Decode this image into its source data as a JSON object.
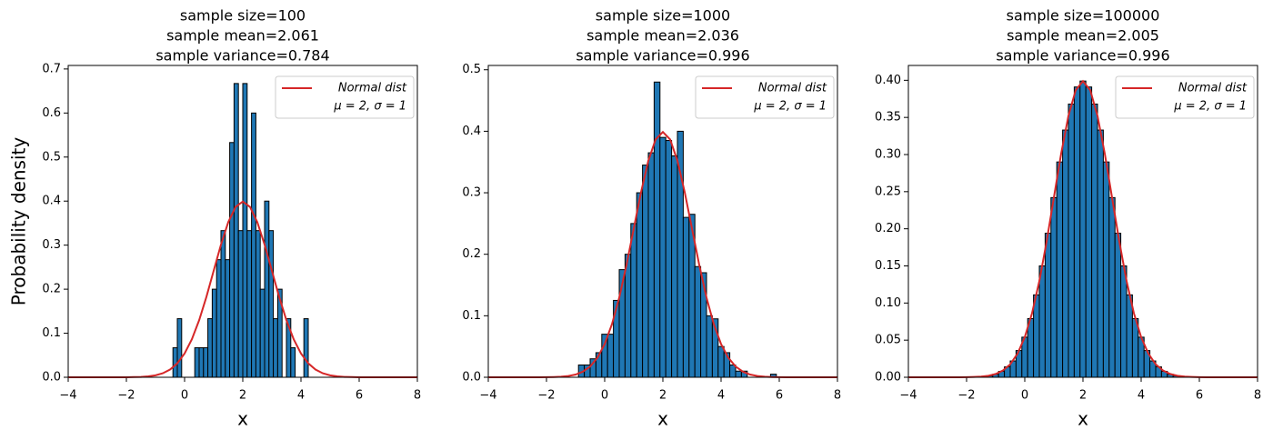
{
  "chart_data": [
    {
      "type": "histogram",
      "title": [
        "sample size=100",
        "sample mean=2.061",
        "sample variance=0.784"
      ],
      "xlabel": "x",
      "ylabel": "Probability density",
      "color": "#1f77b4",
      "legend": "upper right",
      "bins": [
        -0.4,
        -0.25,
        -0.1,
        0.05,
        0.2,
        0.35,
        0.5,
        0.65,
        0.8,
        0.95,
        1.1,
        1.25,
        1.4,
        1.55,
        1.7,
        1.85,
        2,
        2.15,
        2.3,
        2.45,
        2.6,
        2.75,
        2.9,
        3.05,
        3.2,
        3.35,
        3.5,
        3.65,
        3.8,
        3.95,
        4.1,
        4.25
      ],
      "values": [
        0.067,
        0.133,
        0,
        0,
        0,
        0.067,
        0.067,
        0.067,
        0.133,
        0.2,
        0.267,
        0.333,
        0.267,
        0.533,
        0.667,
        0.333,
        0.667,
        0.333,
        0.6,
        0.333,
        0.2,
        0.4,
        0.333,
        0.133,
        0.2,
        0,
        0.133,
        0.067,
        0,
        0,
        0.133
      ],
      "series": [
        {
          "name": "Normal dist",
          "params": "μ = 2, σ = 1",
          "color": "#d62728",
          "x": [
            -4,
            -3.75,
            -3.5,
            -3.25,
            -3,
            -2.75,
            -2.5,
            -2.25,
            -2,
            -1.75,
            -1.5,
            -1.25,
            -1,
            -0.75,
            -0.5,
            -0.25,
            0,
            0.25,
            0.5,
            0.75,
            1,
            1.25,
            1.5,
            1.75,
            2,
            2.25,
            2.5,
            2.75,
            3,
            3.25,
            3.5,
            3.75,
            4,
            4.25,
            4.5,
            4.75,
            5,
            5.25,
            5.5,
            5.75,
            6,
            6.25,
            6.5,
            6.75,
            7,
            7.25,
            7.5,
            7.75,
            8
          ],
          "values": [
            0,
            0,
            0,
            0,
            0,
            0,
            0,
            0,
            0.0001,
            0.0004,
            0.0009,
            0.002,
            0.0044,
            0.0091,
            0.0175,
            0.0317,
            0.054,
            0.0863,
            0.1295,
            0.1826,
            0.242,
            0.3011,
            0.3521,
            0.3867,
            0.3989,
            0.3867,
            0.3521,
            0.3011,
            0.242,
            0.1826,
            0.1295,
            0.0863,
            0.054,
            0.0317,
            0.0175,
            0.0091,
            0.0044,
            0.002,
            0.0009,
            0.0004,
            0.0001,
            0,
            0,
            0,
            0,
            0,
            0,
            0,
            0
          ]
        }
      ],
      "xlim": [
        -4,
        8
      ],
      "xticks": [
        {
          "value": -4,
          "label": "−4"
        },
        {
          "value": -2,
          "label": "−2"
        },
        0,
        2,
        4,
        6,
        8
      ],
      "ylim": [
        0,
        0.708
      ],
      "yticks": [
        {
          "value": 0,
          "label": "0.0"
        },
        0.1,
        0.2,
        0.3,
        0.4,
        0.5,
        0.6,
        0.7
      ]
    },
    {
      "type": "histogram",
      "title": [
        "sample size=1000",
        "sample mean=2.036",
        "sample variance=0.996"
      ],
      "xlabel": "x",
      "color": "#1f77b4",
      "legend": "upper right",
      "bins": [
        -0.9,
        -0.7,
        -0.5,
        -0.3,
        -0.1,
        0.1,
        0.3,
        0.5,
        0.7,
        0.9,
        1.1,
        1.3,
        1.5,
        1.7,
        1.9,
        2.1,
        2.3,
        2.5,
        2.7,
        2.9,
        3.1,
        3.3,
        3.5,
        3.7,
        3.9,
        4.1,
        4.3,
        4.5,
        4.7,
        4.9,
        5.1,
        5.3,
        5.5,
        5.7,
        5.9
      ],
      "values": [
        0.02,
        0.02,
        0.03,
        0.04,
        0.07,
        0.07,
        0.125,
        0.175,
        0.2,
        0.25,
        0.3,
        0.345,
        0.365,
        0.48,
        0.39,
        0.385,
        0.36,
        0.4,
        0.26,
        0.265,
        0.18,
        0.17,
        0.1,
        0.095,
        0.05,
        0.04,
        0.02,
        0.01,
        0.01,
        0,
        0,
        0,
        0,
        0.005
      ],
      "series": [
        {
          "name": "Normal dist",
          "params": "μ = 2, σ = 1",
          "color": "#d62728",
          "x": [
            -4,
            -3.75,
            -3.5,
            -3.25,
            -3,
            -2.75,
            -2.5,
            -2.25,
            -2,
            -1.75,
            -1.5,
            -1.25,
            -1,
            -0.75,
            -0.5,
            -0.25,
            0,
            0.25,
            0.5,
            0.75,
            1,
            1.25,
            1.5,
            1.75,
            2,
            2.25,
            2.5,
            2.75,
            3,
            3.25,
            3.5,
            3.75,
            4,
            4.25,
            4.5,
            4.75,
            5,
            5.25,
            5.5,
            5.75,
            6,
            6.25,
            6.5,
            6.75,
            7,
            7.25,
            7.5,
            7.75,
            8
          ],
          "values": [
            0,
            0,
            0,
            0,
            0,
            0,
            0,
            0,
            0.0001,
            0.0004,
            0.0009,
            0.002,
            0.0044,
            0.0091,
            0.0175,
            0.0317,
            0.054,
            0.0863,
            0.1295,
            0.1826,
            0.242,
            0.3011,
            0.3521,
            0.3867,
            0.3989,
            0.3867,
            0.3521,
            0.3011,
            0.242,
            0.1826,
            0.1295,
            0.0863,
            0.054,
            0.0317,
            0.0175,
            0.0091,
            0.0044,
            0.002,
            0.0009,
            0.0004,
            0.0001,
            0,
            0,
            0,
            0,
            0,
            0,
            0,
            0
          ]
        }
      ],
      "xlim": [
        -4,
        8
      ],
      "xticks": [
        {
          "value": -4,
          "label": "−4"
        },
        {
          "value": -2,
          "label": "−2"
        },
        0,
        2,
        4,
        6,
        8
      ],
      "ylim": [
        0,
        0.507
      ],
      "yticks": [
        {
          "value": 0,
          "label": "0.0"
        },
        0.1,
        0.2,
        0.3,
        0.4,
        0.5
      ]
    },
    {
      "type": "histogram",
      "title": [
        "sample size=100000",
        "sample mean=2.005",
        "sample variance=0.996"
      ],
      "xlabel": "x",
      "color": "#1f77b4",
      "legend": "upper right",
      "bins": [
        -1.3,
        -1.1,
        -0.9,
        -0.7,
        -0.5,
        -0.3,
        -0.1,
        0.1,
        0.3,
        0.5,
        0.7,
        0.9,
        1.1,
        1.3,
        1.5,
        1.7,
        1.9,
        2.1,
        2.3,
        2.5,
        2.7,
        2.9,
        3.1,
        3.3,
        3.5,
        3.7,
        3.9,
        4.1,
        4.3,
        4.5,
        4.7,
        4.9,
        5.1,
        5.3
      ],
      "values": [
        0.002,
        0.004,
        0.008,
        0.014,
        0.022,
        0.036,
        0.054,
        0.079,
        0.111,
        0.15,
        0.194,
        0.242,
        0.29,
        0.333,
        0.368,
        0.391,
        0.399,
        0.391,
        0.368,
        0.333,
        0.29,
        0.242,
        0.194,
        0.15,
        0.111,
        0.079,
        0.054,
        0.036,
        0.022,
        0.014,
        0.008,
        0.004,
        0.002
      ],
      "series": [
        {
          "name": "Normal dist",
          "params": "μ = 2, σ = 1",
          "color": "#d62728",
          "x": [
            -4,
            -3.75,
            -3.5,
            -3.25,
            -3,
            -2.75,
            -2.5,
            -2.25,
            -2,
            -1.75,
            -1.5,
            -1.25,
            -1,
            -0.75,
            -0.5,
            -0.25,
            0,
            0.25,
            0.5,
            0.75,
            1,
            1.25,
            1.5,
            1.75,
            2,
            2.25,
            2.5,
            2.75,
            3,
            3.25,
            3.5,
            3.75,
            4,
            4.25,
            4.5,
            4.75,
            5,
            5.25,
            5.5,
            5.75,
            6,
            6.25,
            6.5,
            6.75,
            7,
            7.25,
            7.5,
            7.75,
            8
          ],
          "values": [
            0,
            0,
            0,
            0,
            0,
            0,
            0,
            0,
            0.0001,
            0.0004,
            0.0009,
            0.002,
            0.0044,
            0.0091,
            0.0175,
            0.0317,
            0.054,
            0.0863,
            0.1295,
            0.1826,
            0.242,
            0.3011,
            0.3521,
            0.3867,
            0.3989,
            0.3867,
            0.3521,
            0.3011,
            0.242,
            0.1826,
            0.1295,
            0.0863,
            0.054,
            0.0317,
            0.0175,
            0.0091,
            0.0044,
            0.002,
            0.0009,
            0.0004,
            0.0001,
            0,
            0,
            0,
            0,
            0,
            0,
            0,
            0
          ]
        }
      ],
      "xlim": [
        -4,
        8
      ],
      "xticks": [
        {
          "value": -4,
          "label": "−4"
        },
        {
          "value": -2,
          "label": "−2"
        },
        0,
        2,
        4,
        6,
        8
      ],
      "ylim": [
        0,
        0.42
      ],
      "yticks": [
        {
          "value": 0,
          "label": "0.00"
        },
        0.05,
        {
          "value": 0.1,
          "label": "0.10"
        },
        0.15,
        {
          "value": 0.2,
          "label": "0.20"
        },
        0.25,
        {
          "value": 0.3,
          "label": "0.30"
        },
        0.35,
        {
          "value": 0.4,
          "label": "0.40"
        }
      ]
    }
  ]
}
